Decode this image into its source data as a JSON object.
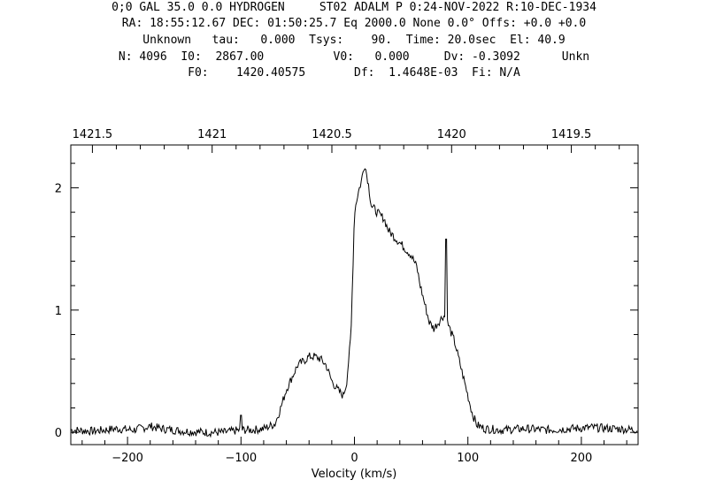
{
  "header": {
    "line1": "0;0 GAL 35.0 0.0 HYDROGEN     ST02 ADALM P 0:24-NOV-2022 R:10-DEC-1934",
    "line2": "RA: 18:55:12.67 DEC: 01:50:25.7 Eq 2000.0 None 0.0° Offs: +0.0 +0.0",
    "line3": "Unknown   tau:   0.000  Tsys:    90.  Time: 20.0sec  El: 40.9",
    "line4": "N: 4096  I0:  2867.00          V0:   0.000     Dv: -0.3092      Unkn",
    "line5": "F0:    1420.40575       Df:  1.4648E-03  Fi: N/A"
  },
  "chart_data": {
    "type": "line",
    "xlabel": "Velocity (km/s)",
    "ylabel": "",
    "xlim": [
      -250,
      250
    ],
    "ylim": [
      -0.1,
      2.35
    ],
    "x_ticks": [
      -200,
      -100,
      0,
      100,
      200
    ],
    "x_tick_labels": [
      "−200",
      "−100",
      "0",
      "100",
      "200"
    ],
    "y_ticks": [
      0,
      1,
      2
    ],
    "y_tick_labels": [
      "0",
      "1",
      "2"
    ],
    "top_axis": {
      "ticks_mhz": [
        1421.5,
        1421,
        1420.5,
        1420,
        1419.5
      ],
      "tick_labels": [
        "1421.5",
        "1421",
        "1420.5",
        "1420",
        "1419.5"
      ],
      "rest_freq_mhz": 1420.40575
    },
    "grid": false,
    "series": [
      {
        "name": "",
        "points": [
          [
            -250,
            0.02
          ],
          [
            -230,
            0.01
          ],
          [
            -210,
            0.03
          ],
          [
            -195,
            0.02
          ],
          [
            -180,
            0.05
          ],
          [
            -170,
            0.03
          ],
          [
            -150,
            0.01
          ],
          [
            -130,
            0.0
          ],
          [
            -115,
            0.0
          ],
          [
            -100,
            0.02
          ],
          [
            -90,
            0.02
          ],
          [
            -80,
            0.03
          ],
          [
            -70,
            0.07
          ],
          [
            -65,
            0.2
          ],
          [
            -60,
            0.35
          ],
          [
            -55,
            0.45
          ],
          [
            -50,
            0.55
          ],
          [
            -45,
            0.58
          ],
          [
            -40,
            0.62
          ],
          [
            -35,
            0.62
          ],
          [
            -30,
            0.6
          ],
          [
            -25,
            0.55
          ],
          [
            -20,
            0.42
          ],
          [
            -15,
            0.35
          ],
          [
            -10,
            0.3
          ],
          [
            -7,
            0.4
          ],
          [
            -3,
            0.8
          ],
          [
            0,
            1.8
          ],
          [
            3,
            1.95
          ],
          [
            6,
            2.05
          ],
          [
            9,
            2.2
          ],
          [
            12,
            2.05
          ],
          [
            15,
            1.85
          ],
          [
            18,
            1.82
          ],
          [
            22,
            1.78
          ],
          [
            26,
            1.75
          ],
          [
            30,
            1.65
          ],
          [
            35,
            1.6
          ],
          [
            40,
            1.55
          ],
          [
            45,
            1.5
          ],
          [
            50,
            1.45
          ],
          [
            55,
            1.35
          ],
          [
            58,
            1.2
          ],
          [
            62,
            1.05
          ],
          [
            66,
            0.9
          ],
          [
            70,
            0.85
          ],
          [
            74,
            0.9
          ],
          [
            78,
            0.95
          ],
          [
            80,
            0.95
          ],
          [
            81,
            1.58
          ],
          [
            82,
            0.9
          ],
          [
            85,
            0.82
          ],
          [
            88,
            0.75
          ],
          [
            92,
            0.6
          ],
          [
            96,
            0.45
          ],
          [
            100,
            0.3
          ],
          [
            104,
            0.15
          ],
          [
            108,
            0.06
          ],
          [
            115,
            0.03
          ],
          [
            130,
            0.02
          ],
          [
            150,
            0.03
          ],
          [
            170,
            0.02
          ],
          [
            190,
            0.03
          ],
          [
            210,
            0.04
          ],
          [
            230,
            0.03
          ],
          [
            250,
            0.02
          ]
        ]
      }
    ]
  }
}
